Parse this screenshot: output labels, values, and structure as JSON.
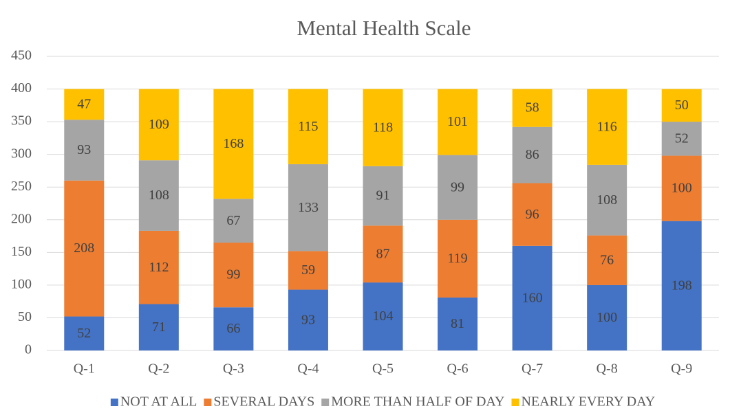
{
  "chart_data": {
    "type": "stacked_bar",
    "title": "Mental Health Scale",
    "categories": [
      "Q-1",
      "Q-2",
      "Q-3",
      "Q-4",
      "Q-5",
      "Q-6",
      "Q-7",
      "Q-8",
      "Q-9"
    ],
    "series": [
      {
        "name": "NOT AT ALL",
        "color": "#4472c4",
        "values": [
          52,
          71,
          66,
          93,
          104,
          81,
          160,
          100,
          198
        ]
      },
      {
        "name": "SEVERAL DAYS",
        "color": "#ed7d31",
        "values": [
          208,
          112,
          99,
          59,
          87,
          119,
          96,
          76,
          100
        ]
      },
      {
        "name": "MORE THAN HALF OF DAY",
        "color": "#a5a5a5",
        "values": [
          93,
          108,
          67,
          133,
          91,
          99,
          86,
          108,
          52
        ]
      },
      {
        "name": "NEARLY EVERY DAY",
        "color": "#ffc000",
        "values": [
          47,
          109,
          168,
          115,
          118,
          101,
          58,
          116,
          50
        ]
      }
    ],
    "ylim": [
      0,
      450
    ],
    "yticks": [
      0,
      50,
      100,
      150,
      200,
      250,
      300,
      350,
      400,
      450
    ],
    "grid": true,
    "legend": "bottom"
  }
}
